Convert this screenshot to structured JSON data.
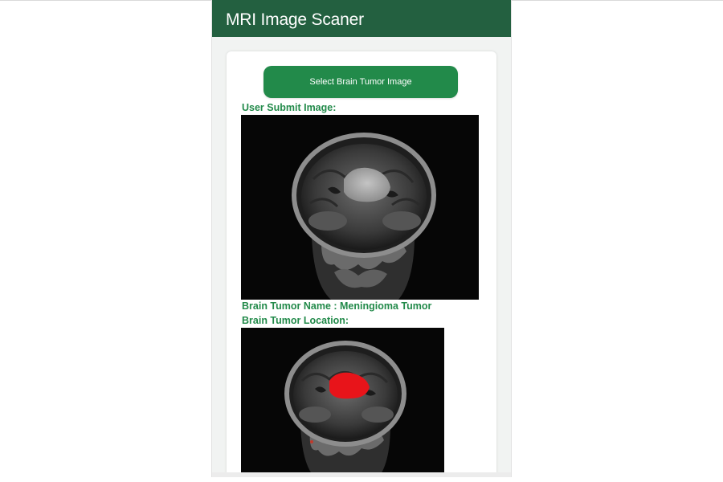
{
  "app": {
    "title": "MRI Image Scaner"
  },
  "actions": {
    "select_image_label": "Select Brain Tumor Image"
  },
  "submitted": {
    "heading": "User Submit Image:"
  },
  "result": {
    "name_line": "Brain Tumor Name : Meningioma Tumor",
    "location_heading": "Brain Tumor Location:"
  },
  "colors": {
    "appbar": "#236040",
    "button": "#228a4a",
    "label_text": "#228a4a",
    "tumor_highlight": "#e8141a"
  }
}
